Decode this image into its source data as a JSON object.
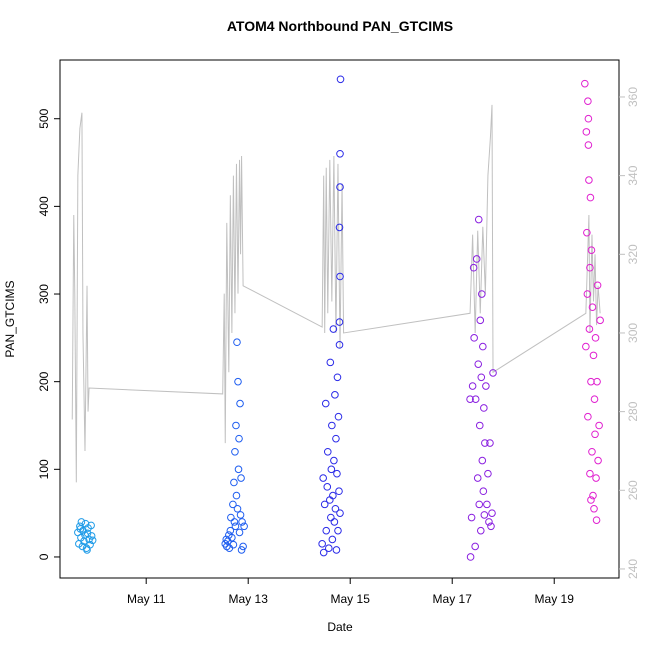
{
  "chart_data": {
    "type": "scatter",
    "title": "ATOM4 Northbound PAN_GTCIMS",
    "x_label": "Date",
    "y_label": "PAN_GTCIMS",
    "xlim": [
      9.31,
      20.27
    ],
    "xticks": [
      {
        "value": 11,
        "label": "May 11"
      },
      {
        "value": 13,
        "label": "May 13"
      },
      {
        "value": 15,
        "label": "May 15"
      },
      {
        "value": 17,
        "label": "May 17"
      },
      {
        "value": 19,
        "label": "May 19"
      }
    ],
    "ylim": [
      -24,
      567
    ],
    "yticks": [
      0,
      100,
      200,
      300,
      400,
      500
    ],
    "y2lim": [
      237.7,
      369.4
    ],
    "y2ticks": [
      240,
      260,
      280,
      300,
      320,
      340,
      360
    ],
    "y2_color": "#c0c0c0",
    "series": [
      {
        "color": "#c0c0c0",
        "axis": "y2",
        "mode": "line",
        "x": [
          9.55,
          9.58,
          9.6,
          9.63,
          9.66,
          9.7,
          9.74,
          9.76,
          9.8,
          9.84,
          9.86,
          9.88,
          12.5,
          12.53,
          12.55,
          12.58,
          12.62,
          12.65,
          12.68,
          12.71,
          12.74,
          12.77,
          12.8,
          12.83,
          12.85,
          12.87,
          12.9,
          14.45,
          14.48,
          14.5,
          14.53,
          14.56,
          14.6,
          14.64,
          14.68,
          14.72,
          14.76,
          14.8,
          14.84,
          14.87,
          17.35,
          17.4,
          17.45,
          17.5,
          17.55,
          17.6,
          17.65,
          17.7,
          17.75,
          17.78,
          17.8,
          19.62,
          19.68,
          19.7,
          19.74,
          19.77,
          19.8,
          19.83,
          19.86,
          19.9
        ],
        "values": [
          278,
          330,
          310,
          262,
          340,
          352,
          356,
          300,
          270,
          312,
          280,
          286,
          284.5,
          310,
          272,
          328,
          290,
          335,
          300,
          340,
          305,
          343,
          310,
          344,
          320,
          345,
          312,
          301.5,
          340,
          300,
          342,
          305,
          344,
          308,
          345,
          300,
          343,
          296,
          338,
          300,
          305,
          325,
          300,
          326,
          305,
          327,
          310,
          340,
          350,
          358,
          290,
          305,
          330,
          300,
          325,
          308,
          320,
          302,
          312,
          305
        ]
      },
      {
        "color": "#1e9be8",
        "mode": "points",
        "x": [
          9.66,
          9.68,
          9.7,
          9.72,
          9.73,
          9.75,
          9.76,
          9.78,
          9.8,
          9.81,
          9.83,
          9.85,
          9.86,
          9.88,
          9.9,
          9.92,
          9.93,
          9.95,
          9.71,
          9.84
        ],
        "values": [
          28,
          15,
          35,
          22,
          40,
          12,
          30,
          18,
          25,
          38,
          10,
          27,
          33,
          20,
          14,
          36,
          24,
          19,
          32,
          8
        ]
      },
      {
        "color": "#1f5ef0",
        "mode": "points",
        "x": [
          12.55,
          12.57,
          12.58,
          12.6,
          12.62,
          12.63,
          12.65,
          12.66,
          12.68,
          12.7,
          12.71,
          12.72,
          12.73,
          12.74,
          12.75,
          12.76,
          12.77,
          12.78,
          12.79,
          12.8,
          12.81,
          12.82,
          12.83,
          12.84,
          12.85,
          12.86,
          12.87,
          12.88,
          12.9,
          12.92
        ],
        "values": [
          15,
          20,
          12,
          18,
          25,
          10,
          30,
          45,
          22,
          60,
          14,
          85,
          40,
          120,
          35,
          150,
          70,
          245,
          55,
          200,
          100,
          135,
          28,
          175,
          48,
          90,
          8,
          40,
          12,
          35
        ]
      },
      {
        "color": "#2b2be8",
        "mode": "points",
        "x": [
          14.45,
          14.47,
          14.48,
          14.5,
          14.52,
          14.53,
          14.55,
          14.56,
          14.58,
          14.6,
          14.61,
          14.62,
          14.63,
          14.64,
          14.65,
          14.66,
          14.67,
          14.68,
          14.69,
          14.7,
          14.71,
          14.72,
          14.73,
          14.74,
          14.75,
          14.76,
          14.77,
          14.78,
          14.79,
          14.8,
          14.81,
          14.8,
          14.8,
          14.79,
          14.8,
          14.79
        ],
        "values": [
          15,
          90,
          5,
          60,
          175,
          30,
          80,
          120,
          10,
          65,
          222,
          45,
          100,
          150,
          20,
          70,
          260,
          110,
          40,
          185,
          55,
          135,
          8,
          95,
          205,
          30,
          160,
          75,
          268,
          50,
          545,
          460,
          422,
          376,
          320,
          242
        ]
      },
      {
        "color": "#8a20e0",
        "mode": "points",
        "x": [
          17.36,
          17.38,
          17.4,
          17.42,
          17.43,
          17.45,
          17.46,
          17.48,
          17.5,
          17.51,
          17.52,
          17.53,
          17.54,
          17.55,
          17.56,
          17.57,
          17.58,
          17.59,
          17.6,
          17.61,
          17.62,
          17.63,
          17.64,
          17.66,
          17.68,
          17.7,
          17.72,
          17.74,
          17.76,
          17.78,
          17.8,
          17.35
        ],
        "values": [
          0,
          45,
          195,
          330,
          250,
          12,
          180,
          340,
          90,
          220,
          385,
          60,
          150,
          270,
          30,
          205,
          300,
          110,
          240,
          75,
          170,
          48,
          130,
          195,
          60,
          95,
          40,
          130,
          35,
          50,
          210,
          180
        ]
      },
      {
        "color": "#e020d0",
        "mode": "points",
        "x": [
          19.6,
          19.62,
          19.63,
          19.64,
          19.65,
          19.66,
          19.67,
          19.68,
          19.69,
          19.7,
          19.71,
          19.72,
          19.73,
          19.74,
          19.75,
          19.76,
          19.77,
          19.78,
          19.79,
          19.8,
          19.81,
          19.82,
          19.83,
          19.84,
          19.85,
          19.86,
          19.88,
          19.9,
          19.66,
          19.67,
          19.7,
          19.72
        ],
        "values": [
          540,
          240,
          485,
          370,
          300,
          160,
          500,
          430,
          260,
          95,
          410,
          200,
          350,
          120,
          285,
          70,
          230,
          55,
          180,
          140,
          250,
          90,
          42,
          200,
          310,
          110,
          150,
          270,
          520,
          470,
          330,
          65
        ]
      }
    ]
  }
}
